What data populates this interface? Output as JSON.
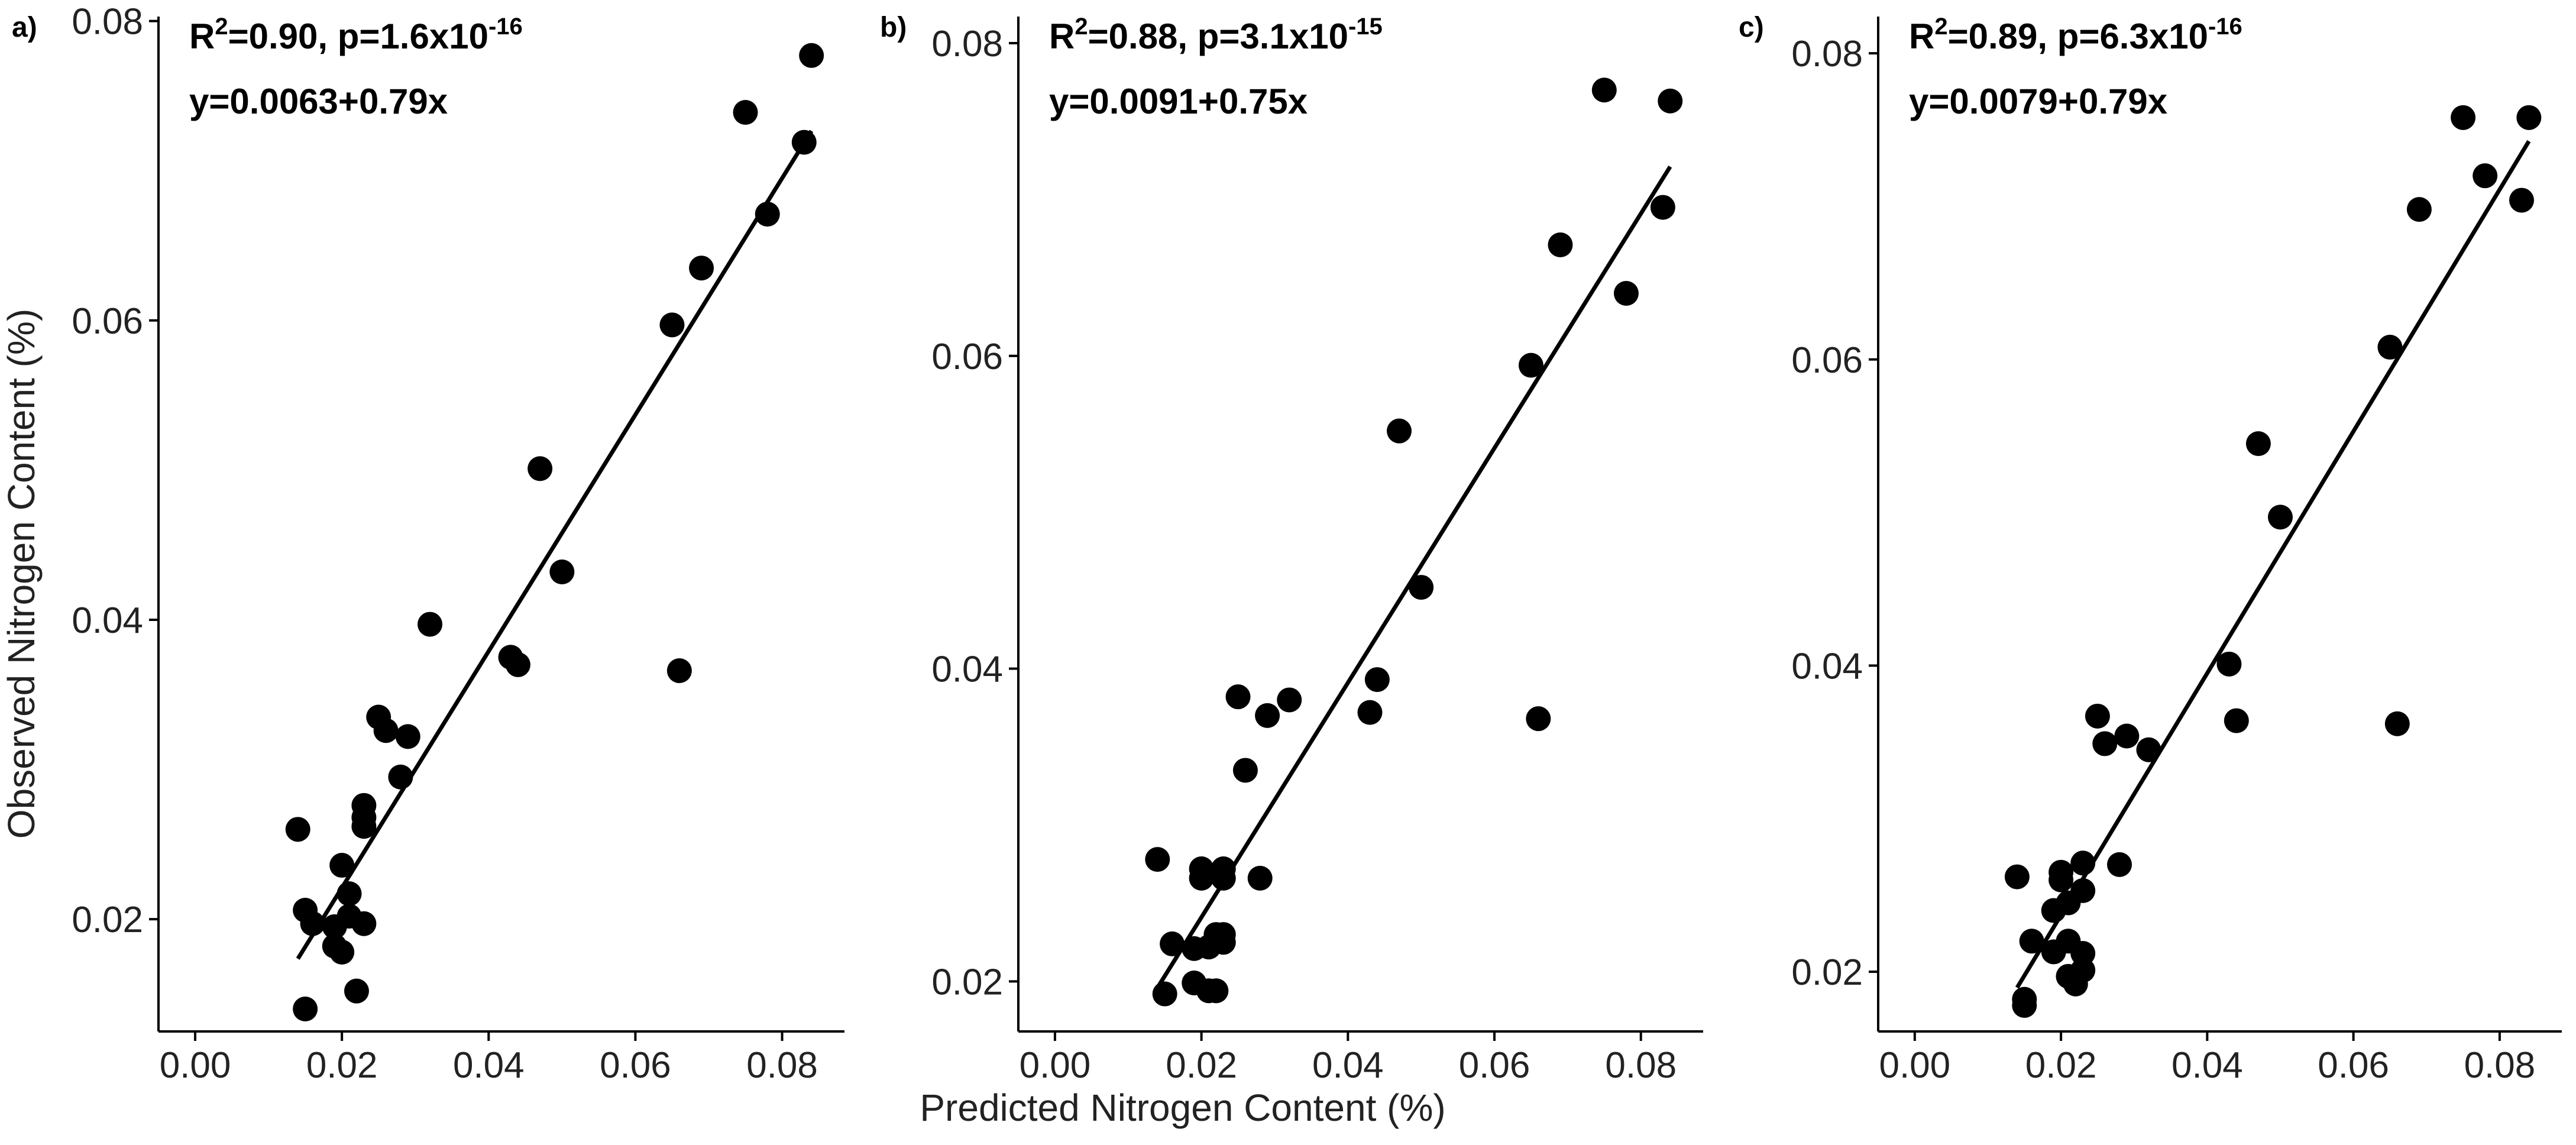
{
  "figure": {
    "xlabel": "Predicted Nitrogen Content (%)",
    "ylabel": "Observed Nitrogen Content (%)"
  },
  "chart_data": [
    {
      "type": "scatter",
      "panel_label": "a)",
      "annotation": {
        "r2_prefix": "R",
        "r2_sup": "2",
        "r2_value": "=0.90, p=1.6x10",
        "p_exp": "-16",
        "equation": "y=0.0063+0.79x"
      },
      "fit": {
        "intercept": 0.0063,
        "slope": 0.79,
        "x_range": [
          0.014,
          0.084
        ]
      },
      "xlim": [
        -0.005,
        0.0885
      ],
      "ylim": [
        0.0125,
        0.0803
      ],
      "xticks": [
        0.0,
        0.02,
        0.04,
        0.06,
        0.08
      ],
      "xtick_labels": [
        "0.00",
        "0.02",
        "0.04",
        "0.06",
        "0.08"
      ],
      "yticks": [
        0.02,
        0.04,
        0.06,
        0.08
      ],
      "ytick_labels": [
        "0.02",
        "0.04",
        "0.06",
        "0.08"
      ],
      "points": [
        [
          0.014,
          0.026
        ],
        [
          0.015,
          0.0206
        ],
        [
          0.015,
          0.014
        ],
        [
          0.016,
          0.0197
        ],
        [
          0.019,
          0.0195
        ],
        [
          0.019,
          0.0182
        ],
        [
          0.02,
          0.0178
        ],
        [
          0.02,
          0.0236
        ],
        [
          0.021,
          0.0217
        ],
        [
          0.021,
          0.0202
        ],
        [
          0.022,
          0.0152
        ],
        [
          0.023,
          0.0197
        ],
        [
          0.023,
          0.0262
        ],
        [
          0.023,
          0.0276
        ],
        [
          0.023,
          0.0268
        ],
        [
          0.025,
          0.0335
        ],
        [
          0.026,
          0.0326
        ],
        [
          0.028,
          0.0295
        ],
        [
          0.029,
          0.0322
        ],
        [
          0.032,
          0.0397
        ],
        [
          0.043,
          0.0375
        ],
        [
          0.044,
          0.037
        ],
        [
          0.047,
          0.0501
        ],
        [
          0.05,
          0.0432
        ],
        [
          0.065,
          0.0597
        ],
        [
          0.066,
          0.0366
        ],
        [
          0.069,
          0.0635
        ],
        [
          0.075,
          0.0739
        ],
        [
          0.078,
          0.0671
        ],
        [
          0.083,
          0.0719
        ],
        [
          0.084,
          0.0777
        ]
      ]
    },
    {
      "type": "scatter",
      "panel_label": "b)",
      "annotation": {
        "r2_prefix": "R",
        "r2_sup": "2",
        "r2_value": "=0.88, p=3.1x10",
        "p_exp": "-15",
        "equation": "y=0.0091+0.75x"
      },
      "fit": {
        "intercept": 0.0091,
        "slope": 0.75,
        "x_range": [
          0.014,
          0.084
        ]
      },
      "xlim": [
        -0.005,
        0.0885
      ],
      "ylim": [
        0.0168,
        0.0817
      ],
      "xticks": [
        0.0,
        0.02,
        0.04,
        0.06,
        0.08
      ],
      "xtick_labels": [
        "0.00",
        "0.02",
        "0.04",
        "0.06",
        "0.08"
      ],
      "yticks": [
        0.02,
        0.04,
        0.06,
        0.08
      ],
      "ytick_labels": [
        "0.02",
        "0.04",
        "0.06",
        "0.08"
      ],
      "points": [
        [
          0.014,
          0.0278
        ],
        [
          0.015,
          0.0192
        ],
        [
          0.016,
          0.0224
        ],
        [
          0.019,
          0.0221
        ],
        [
          0.019,
          0.0199
        ],
        [
          0.02,
          0.0272
        ],
        [
          0.02,
          0.0266
        ],
        [
          0.021,
          0.0222
        ],
        [
          0.021,
          0.0194
        ],
        [
          0.022,
          0.0194
        ],
        [
          0.022,
          0.023
        ],
        [
          0.023,
          0.0272
        ],
        [
          0.023,
          0.0266
        ],
        [
          0.023,
          0.023
        ],
        [
          0.023,
          0.0225
        ],
        [
          0.025,
          0.0382
        ],
        [
          0.026,
          0.0335
        ],
        [
          0.028,
          0.0266
        ],
        [
          0.029,
          0.037
        ],
        [
          0.032,
          0.038
        ],
        [
          0.043,
          0.0372
        ],
        [
          0.044,
          0.0393
        ],
        [
          0.047,
          0.0552
        ],
        [
          0.05,
          0.0452
        ],
        [
          0.065,
          0.0594
        ],
        [
          0.066,
          0.0368
        ],
        [
          0.069,
          0.0671
        ],
        [
          0.075,
          0.077
        ],
        [
          0.078,
          0.064
        ],
        [
          0.083,
          0.0695
        ],
        [
          0.084,
          0.0763
        ]
      ]
    },
    {
      "type": "scatter",
      "panel_label": "c)",
      "annotation": {
        "r2_prefix": "R",
        "r2_sup": "2",
        "r2_value": "=0.89, p=6.3x10",
        "p_exp": "-16",
        "equation": "y=0.0079+0.79x"
      },
      "fit": {
        "intercept": 0.0079,
        "slope": 0.79,
        "x_range": [
          0.014,
          0.084
        ]
      },
      "xlim": [
        -0.005,
        0.0885
      ],
      "ylim": [
        0.0161,
        0.0824
      ],
      "xticks": [
        0.0,
        0.02,
        0.04,
        0.06,
        0.08
      ],
      "xtick_labels": [
        "0.00",
        "0.02",
        "0.04",
        "0.06",
        "0.08"
      ],
      "yticks": [
        0.02,
        0.04,
        0.06,
        0.08
      ],
      "ytick_labels": [
        "0.02",
        "0.04",
        "0.06",
        "0.08"
      ],
      "points": [
        [
          0.014,
          0.0262
        ],
        [
          0.015,
          0.0182
        ],
        [
          0.015,
          0.0178
        ],
        [
          0.016,
          0.022
        ],
        [
          0.019,
          0.0213
        ],
        [
          0.019,
          0.024
        ],
        [
          0.02,
          0.0265
        ],
        [
          0.02,
          0.026
        ],
        [
          0.021,
          0.0245
        ],
        [
          0.021,
          0.022
        ],
        [
          0.021,
          0.0197
        ],
        [
          0.022,
          0.0192
        ],
        [
          0.023,
          0.0271
        ],
        [
          0.023,
          0.0253
        ],
        [
          0.023,
          0.0212
        ],
        [
          0.023,
          0.0201
        ],
        [
          0.025,
          0.0367
        ],
        [
          0.026,
          0.0349
        ],
        [
          0.028,
          0.027
        ],
        [
          0.029,
          0.0354
        ],
        [
          0.032,
          0.0345
        ],
        [
          0.043,
          0.0401
        ],
        [
          0.044,
          0.0364
        ],
        [
          0.047,
          0.0545
        ],
        [
          0.05,
          0.0497
        ],
        [
          0.065,
          0.0608
        ],
        [
          0.066,
          0.0362
        ],
        [
          0.069,
          0.0698
        ],
        [
          0.075,
          0.0758
        ],
        [
          0.078,
          0.072
        ],
        [
          0.083,
          0.0704
        ],
        [
          0.084,
          0.0758
        ]
      ]
    }
  ]
}
